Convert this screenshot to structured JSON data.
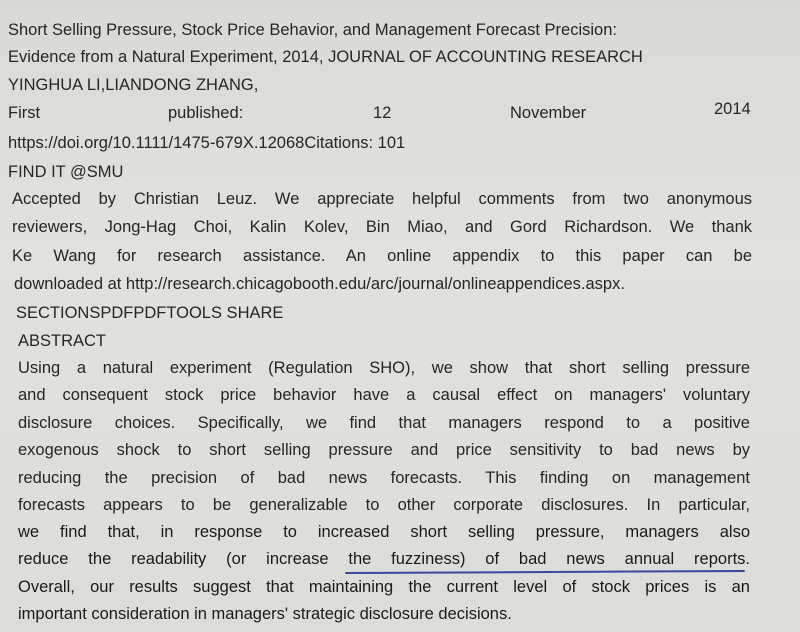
{
  "header": {
    "title_line1": "Short Selling Pressure, Stock Price Behavior, and Management Forecast Precision:",
    "title_line2": "Evidence from a Natural Experiment, 2014, JOURNAL OF ACCOUNTING RESEARCH",
    "authors": "YINGHUA LI,LIANDONG ZHANG,",
    "first_published": {
      "label": "First",
      "label2": "published:",
      "day": "12",
      "month": "November",
      "year": "2014"
    },
    "doi_citations": "https://doi.org/10.1111/1475-679X.12068Citations: 101",
    "find_it": "FIND IT @SMU"
  },
  "acknowledgement": [
    "Accepted by Christian Leuz. We appreciate helpful comments from two anonymous",
    "reviewers, Jong-Hag Choi, Kalin Kolev, Bin Miao, and Gord Richardson. We thank",
    "Ke Wang for research assistance. An online appendix to this paper can be",
    "downloaded at http://research.chicagobooth.edu/arc/journal/onlineappendices.aspx."
  ],
  "toolbar": "SECTIONSPDFPDFTOOLS SHARE",
  "abstract_heading": "ABSTRACT",
  "abstract": [
    "Using a natural experiment (Regulation SHO), we show that short selling pressure",
    "and consequent stock price behavior have a causal effect on managers' voluntary",
    "disclosure choices. Specifically, we find that managers respond to a positive",
    "exogenous shock to short selling pressure and price sensitivity to bad news by",
    "reducing the precision of bad news forecasts. This finding on management",
    "forecasts appears to be generalizable to other corporate disclosures. In particular,",
    "we find that, in response to increased short selling pressure, managers also",
    "reduce the readability (or increase the fuzziness) of bad news annual reports.",
    "Overall, our results suggest that maintaining the current level of stock prices is an",
    "important consideration in managers' strategic disclosure decisions."
  ]
}
